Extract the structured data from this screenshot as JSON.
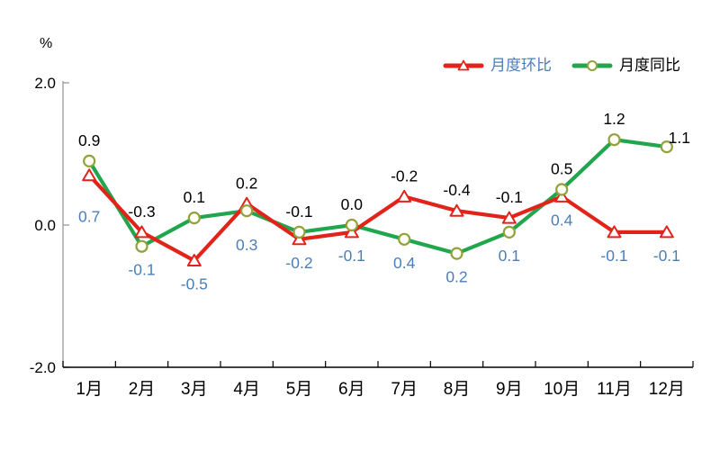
{
  "chart_data": {
    "type": "line",
    "title": "",
    "xlabel": "",
    "ylabel": "%",
    "categories": [
      "1月",
      "2月",
      "3月",
      "4月",
      "5月",
      "6月",
      "7月",
      "8月",
      "9月",
      "10月",
      "11月",
      "12月"
    ],
    "series": [
      {
        "name": "月度环比",
        "color": "#e2231a",
        "marker": "triangle",
        "marker_stroke": "#e2231a",
        "marker_fill": "#ffffff",
        "label_color": "#4a7ebb",
        "values": [
          0.7,
          -0.1,
          -0.5,
          0.3,
          -0.2,
          -0.1,
          0.4,
          0.2,
          0.1,
          0.4,
          -0.1,
          -0.1
        ]
      },
      {
        "name": "月度同比",
        "color": "#21a64e",
        "marker": "circle",
        "marker_stroke": "#93a13d",
        "marker_fill": "#fffef7",
        "label_color": "#000000",
        "values": [
          0.9,
          -0.3,
          0.1,
          0.2,
          -0.1,
          0.0,
          -0.2,
          -0.4,
          -0.1,
          0.5,
          1.2,
          1.1
        ]
      }
    ],
    "ylim": [
      -2.0,
      2.0
    ],
    "yticks": {
      "labels": [
        "2.0",
        "0.0",
        "-2.0"
      ],
      "values": [
        2.0,
        0.0,
        -2.0
      ]
    },
    "grid": false,
    "legend_position": "top-right",
    "axis_colors": {
      "y_axis": "#a6a6a6",
      "x_axis": "#000000"
    }
  }
}
